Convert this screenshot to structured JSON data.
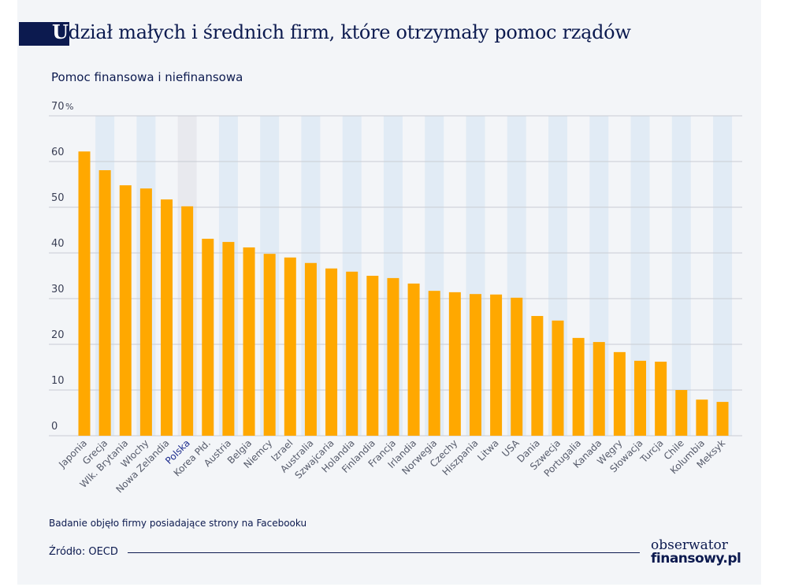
{
  "title_first_letter": "U",
  "title_rest": "dział małych i średnich firm, które otrzymały pomoc rządów",
  "subtitle": "Pomoc finansowa i niefinansowa",
  "note": "Badanie objęło firmy posiadające strony na Facebooku",
  "source": "Źródło: OECD",
  "logo": {
    "line1": "obserwator",
    "line2": "finansowy.pl"
  },
  "colors": {
    "bar": "#ffa800",
    "stripe": "#e1ebf5",
    "highlight_stripe": "#e8e9ee",
    "text": "#0c1a4f",
    "highlight_label": "#1a2a8c"
  },
  "chart_data": {
    "type": "bar",
    "title": "Udział małych i średnich firm, które otrzymały pomoc rządów",
    "subtitle": "Pomoc finansowa i niefinansowa",
    "unit": "%",
    "ylim": [
      0,
      70
    ],
    "yticks": [
      "0",
      "10",
      "20",
      "30",
      "40",
      "50",
      "60",
      "70"
    ],
    "grid": true,
    "highlight": "Polska",
    "categories": [
      "Japonia",
      "Grecja",
      "Wlk. Brytania",
      "Włochy",
      "Nowa Zelandia",
      "Polska",
      "Korea Płd.",
      "Austria",
      "Belgia",
      "Niemcy",
      "Izrael",
      "Australia",
      "Szwajcaria",
      "Holandia",
      "Finlandia",
      "Francja",
      "Irlandia",
      "Norwegia",
      "Czechy",
      "Hiszpania",
      "Litwa",
      "USA",
      "Dania",
      "Szwecja",
      "Portugalia",
      "Kanada",
      "Węgry",
      "Słowacja",
      "Turcja",
      "Chile",
      "Kolumbia",
      "Meksyk"
    ],
    "values": [
      62.2,
      58.1,
      54.8,
      54.1,
      51.7,
      50.2,
      43.1,
      42.4,
      41.2,
      39.8,
      39.0,
      37.8,
      36.6,
      35.9,
      35.0,
      34.5,
      33.3,
      31.7,
      31.4,
      31.0,
      30.9,
      30.2,
      26.2,
      25.2,
      21.4,
      20.5,
      18.3,
      16.4,
      16.2,
      10.0,
      7.9,
      7.4
    ]
  }
}
